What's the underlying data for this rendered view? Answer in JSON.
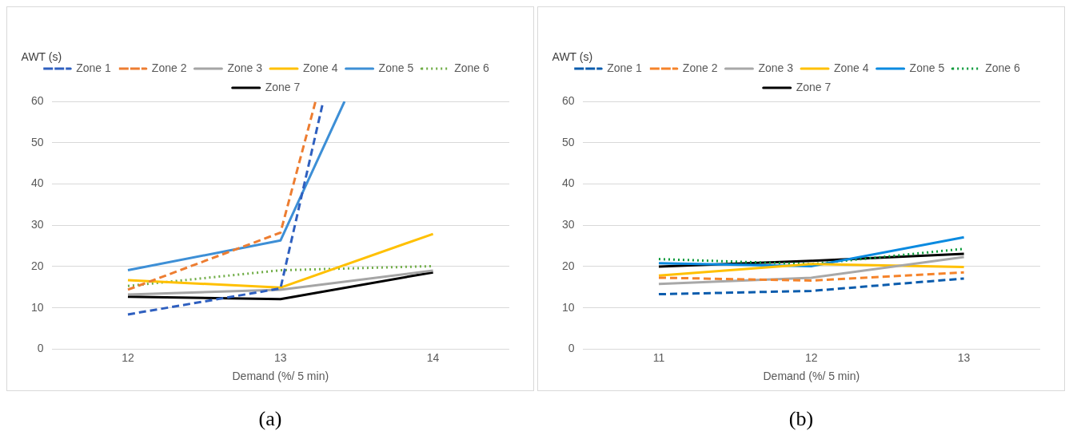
{
  "chart_data": [
    {
      "type": "line",
      "ylabel": "AWT (s)",
      "xlabel": "Demand (%/ 5 min)",
      "xlim": [
        11.5,
        14.5
      ],
      "xticks": [
        12,
        13,
        14
      ],
      "ylim": [
        0,
        60
      ],
      "yticks": [
        0,
        10,
        20,
        30,
        40,
        50,
        60
      ],
      "grid": "y",
      "legend": "top",
      "marker": "none",
      "annotations": [
        "(a)"
      ],
      "series": [
        {
          "name": "Zone 1",
          "color": "#2e5fbf",
          "line_style": "dashed",
          "x": [
            12,
            13,
            13.28
          ],
          "values": [
            8.4,
            14.7,
            60
          ]
        },
        {
          "name": "Zone 2",
          "color": "#ed7d31",
          "line_style": "dashed",
          "x": [
            12,
            13,
            13.23
          ],
          "values": [
            14.4,
            28.2,
            60
          ]
        },
        {
          "name": "Zone 3",
          "color": "#a5a5a5",
          "line_style": "solid",
          "x": [
            12,
            13,
            14
          ],
          "values": [
            13.2,
            14.4,
            19.0
          ]
        },
        {
          "name": "Zone 4",
          "color": "#ffc000",
          "line_style": "solid",
          "x": [
            12,
            13,
            14
          ],
          "values": [
            16.7,
            14.9,
            27.9
          ]
        },
        {
          "name": "Zone 5",
          "color": "#3d8fd6",
          "line_style": "solid",
          "x": [
            12,
            13,
            13.42
          ],
          "values": [
            19.1,
            26.3,
            60
          ]
        },
        {
          "name": "Zone 6",
          "color": "#70ad47",
          "line_style": "dotted",
          "x": [
            12,
            13,
            14
          ],
          "values": [
            15.3,
            19.1,
            20.1
          ]
        },
        {
          "name": "Zone 7",
          "color": "#000000",
          "line_style": "solid",
          "x": [
            12,
            13,
            14
          ],
          "values": [
            12.7,
            12.1,
            18.6
          ]
        }
      ]
    },
    {
      "type": "line",
      "ylabel": "AWT (s)",
      "xlabel": "Demand (%/ 5 min)",
      "xlim": [
        10.5,
        13.5
      ],
      "xticks": [
        11,
        12,
        13
      ],
      "ylim": [
        0,
        60
      ],
      "yticks": [
        0,
        10,
        20,
        30,
        40,
        50,
        60
      ],
      "grid": "y",
      "legend": "top",
      "marker": "none",
      "annotations": [
        "(b)"
      ],
      "series": [
        {
          "name": "Zone 1",
          "color": "#0b5cad",
          "line_style": "dashed",
          "x": [
            11,
            12,
            13
          ],
          "values": [
            13.3,
            14.1,
            17.1
          ]
        },
        {
          "name": "Zone 2",
          "color": "#f5832a",
          "line_style": "dashed",
          "x": [
            11,
            12,
            13
          ],
          "values": [
            17.3,
            16.6,
            18.6
          ]
        },
        {
          "name": "Zone 3",
          "color": "#a8a8a8",
          "line_style": "solid",
          "x": [
            11,
            12,
            13
          ],
          "values": [
            15.8,
            17.3,
            22.3
          ]
        },
        {
          "name": "Zone 4",
          "color": "#ffc000",
          "line_style": "solid",
          "x": [
            11,
            12,
            13
          ],
          "values": [
            17.8,
            20.6,
            19.9
          ]
        },
        {
          "name": "Zone 5",
          "color": "#0a8ae0",
          "line_style": "solid",
          "x": [
            11,
            12,
            13
          ],
          "values": [
            20.8,
            20.1,
            27.1
          ]
        },
        {
          "name": "Zone 6",
          "color": "#0a9a3a",
          "line_style": "dotted",
          "x": [
            11,
            12,
            13
          ],
          "values": [
            21.8,
            20.6,
            24.3
          ]
        },
        {
          "name": "Zone 7",
          "color": "#000000",
          "line_style": "solid",
          "x": [
            11,
            12,
            13
          ],
          "values": [
            20.0,
            21.4,
            23.1
          ]
        }
      ]
    }
  ]
}
